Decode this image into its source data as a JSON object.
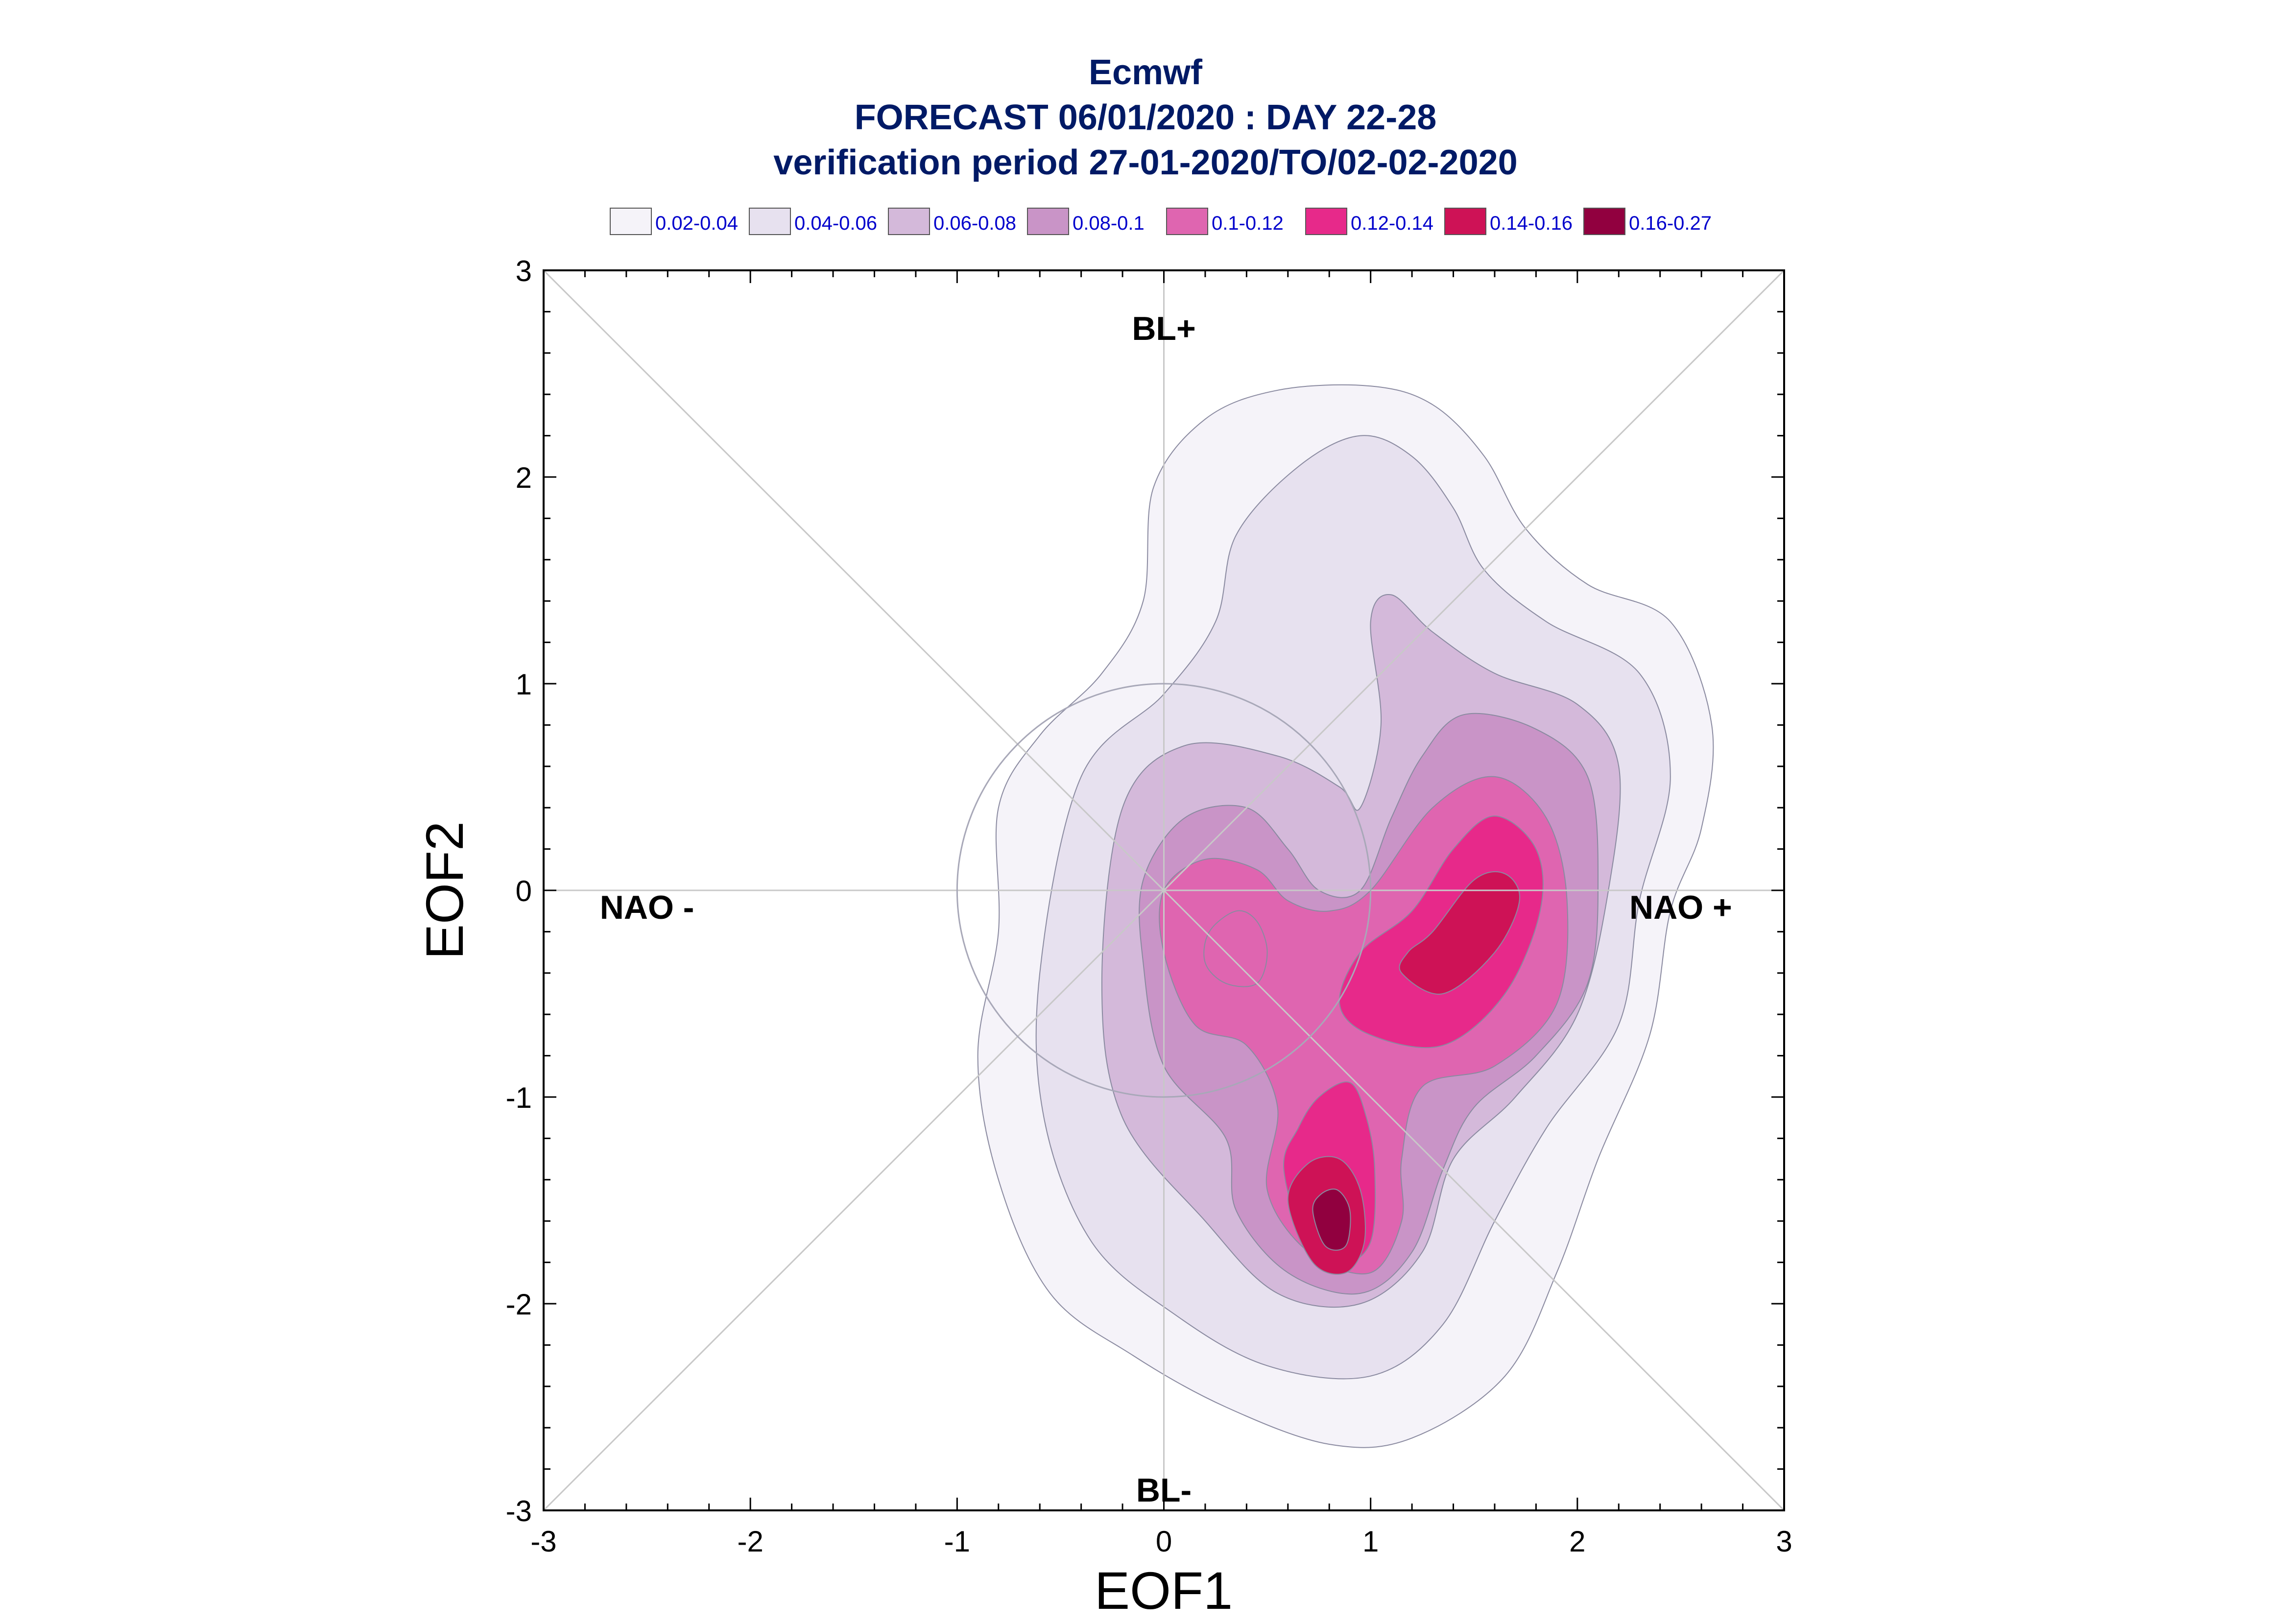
{
  "chart_data": {
    "type": "contour",
    "title": "Ecmwf",
    "subtitle": "FORECAST 06/01/2020 : DAY 22-28",
    "subtitle2": "verification period 27-01-2020/TO/02-02-2020",
    "xlabel": "EOF1",
    "ylabel": "EOF2",
    "xlim": [
      -3,
      3
    ],
    "ylim": [
      -3,
      3
    ],
    "x_ticks": [
      "-3",
      "-2",
      "-1",
      "0",
      "1",
      "2",
      "3"
    ],
    "y_ticks": [
      "-3",
      "-2",
      "-1",
      "0",
      "1",
      "2",
      "3"
    ],
    "grid": false,
    "legend_position": "top",
    "regime_labels": [
      {
        "text": "BL+",
        "x": 0.0,
        "y": 2.72
      },
      {
        "text": "BL-",
        "x": 0.0,
        "y": -2.9
      },
      {
        "text": "NAO -",
        "x": -2.5,
        "y": -0.08
      },
      {
        "text": "NAO +",
        "x": 2.5,
        "y": -0.08
      }
    ],
    "reference_lines": {
      "diagonals": true,
      "axes_through_origin": true,
      "unit_circle_radius": 1
    },
    "levels": [
      {
        "label": "0.02-0.04",
        "color": "#f5f3f9"
      },
      {
        "label": "0.04-0.06",
        "color": "#e7e1ef"
      },
      {
        "label": "0.06-0.08",
        "color": "#d4b9da"
      },
      {
        "label": "0.08-0.1",
        "color": "#c994c7"
      },
      {
        "label": "0.1-0.12",
        "color": "#df65b0"
      },
      {
        "label": "0.12-0.14",
        "color": "#e7298a"
      },
      {
        "label": "0.14-0.16",
        "color": "#ce1256"
      },
      {
        "label": "0.16-0.27",
        "color": "#91003f"
      }
    ],
    "contours": [
      {
        "level": 0,
        "points": [
          [
            -0.8,
            -0.2
          ],
          [
            -0.9,
            -0.8
          ],
          [
            -0.8,
            -1.4
          ],
          [
            -0.55,
            -1.95
          ],
          [
            -0.15,
            -2.25
          ],
          [
            0.3,
            -2.5
          ],
          [
            0.8,
            -2.68
          ],
          [
            1.2,
            -2.65
          ],
          [
            1.65,
            -2.35
          ],
          [
            1.9,
            -1.85
          ],
          [
            2.1,
            -1.3
          ],
          [
            2.35,
            -0.7
          ],
          [
            2.45,
            -0.1
          ],
          [
            2.6,
            0.3
          ],
          [
            2.65,
            0.8
          ],
          [
            2.45,
            1.3
          ],
          [
            2.05,
            1.48
          ],
          [
            1.75,
            1.75
          ],
          [
            1.55,
            2.1
          ],
          [
            1.3,
            2.35
          ],
          [
            1.0,
            2.44
          ],
          [
            0.55,
            2.42
          ],
          [
            0.2,
            2.28
          ],
          [
            -0.05,
            1.95
          ],
          [
            -0.1,
            1.4
          ],
          [
            -0.3,
            1.05
          ],
          [
            -0.6,
            0.75
          ],
          [
            -0.8,
            0.4
          ]
        ]
      },
      {
        "level": 1,
        "points": [
          [
            -0.6,
            -0.4
          ],
          [
            -0.58,
            -1.1
          ],
          [
            -0.35,
            -1.7
          ],
          [
            0.05,
            -2.05
          ],
          [
            0.5,
            -2.3
          ],
          [
            1.0,
            -2.35
          ],
          [
            1.35,
            -2.1
          ],
          [
            1.6,
            -1.6
          ],
          [
            1.85,
            -1.15
          ],
          [
            2.2,
            -0.65
          ],
          [
            2.3,
            -0.05
          ],
          [
            2.45,
            0.55
          ],
          [
            2.3,
            1.05
          ],
          [
            1.85,
            1.3
          ],
          [
            1.55,
            1.55
          ],
          [
            1.4,
            1.85
          ],
          [
            1.2,
            2.1
          ],
          [
            0.95,
            2.2
          ],
          [
            0.65,
            2.05
          ],
          [
            0.35,
            1.72
          ],
          [
            0.25,
            1.3
          ],
          [
            0.0,
            0.95
          ],
          [
            -0.4,
            0.55
          ]
        ]
      },
      {
        "level": 2,
        "points": [
          [
            -0.3,
            -0.45
          ],
          [
            -0.2,
            -1.1
          ],
          [
            0.2,
            -1.6
          ],
          [
            0.55,
            -1.95
          ],
          [
            0.95,
            -2.0
          ],
          [
            1.25,
            -1.75
          ],
          [
            1.4,
            -1.3
          ],
          [
            1.7,
            -1.0
          ],
          [
            2.0,
            -0.6
          ],
          [
            2.15,
            0.0
          ],
          [
            2.2,
            0.6
          ],
          [
            2.0,
            0.9
          ],
          [
            1.6,
            1.05
          ],
          [
            1.3,
            1.25
          ],
          [
            1.1,
            1.43
          ],
          [
            1.0,
            1.3
          ],
          [
            1.05,
            0.8
          ],
          [
            0.95,
            0.4
          ],
          [
            0.85,
            0.5
          ],
          [
            0.55,
            0.65
          ],
          [
            0.1,
            0.7
          ],
          [
            -0.2,
            0.4
          ]
        ]
      },
      {
        "level": 3,
        "points": [
          [
            -0.1,
            -0.35
          ],
          [
            0.0,
            -0.85
          ],
          [
            0.3,
            -1.2
          ],
          [
            0.35,
            -1.55
          ],
          [
            0.6,
            -1.85
          ],
          [
            0.95,
            -1.95
          ],
          [
            1.2,
            -1.75
          ],
          [
            1.35,
            -1.35
          ],
          [
            1.5,
            -1.05
          ],
          [
            1.8,
            -0.8
          ],
          [
            2.05,
            -0.45
          ],
          [
            2.1,
            0.05
          ],
          [
            2.05,
            0.55
          ],
          [
            1.8,
            0.78
          ],
          [
            1.45,
            0.85
          ],
          [
            1.25,
            0.65
          ],
          [
            1.1,
            0.35
          ],
          [
            0.95,
            0.0
          ],
          [
            0.75,
            0.0
          ],
          [
            0.6,
            0.2
          ],
          [
            0.4,
            0.4
          ],
          [
            0.1,
            0.35
          ],
          [
            -0.1,
            0.05
          ]
        ]
      },
      {
        "level": 4,
        "points": [
          [
            0.0,
            -0.3
          ],
          [
            0.15,
            -0.65
          ],
          [
            0.4,
            -0.75
          ],
          [
            0.55,
            -1.05
          ],
          [
            0.5,
            -1.45
          ],
          [
            0.7,
            -1.75
          ],
          [
            1.0,
            -1.85
          ],
          [
            1.15,
            -1.6
          ],
          [
            1.15,
            -1.3
          ],
          [
            1.25,
            -0.95
          ],
          [
            1.6,
            -0.85
          ],
          [
            1.9,
            -0.55
          ],
          [
            1.95,
            -0.05
          ],
          [
            1.85,
            0.35
          ],
          [
            1.6,
            0.55
          ],
          [
            1.3,
            0.4
          ],
          [
            1.0,
            0.0
          ],
          [
            0.8,
            -0.1
          ],
          [
            0.6,
            -0.05
          ],
          [
            0.45,
            0.1
          ],
          [
            0.2,
            0.15
          ],
          [
            0.0,
            0.0
          ]
        ]
      },
      {
        "level": 5,
        "points": [
          [
            0.58,
            -1.35
          ],
          [
            0.7,
            -1.75
          ],
          [
            0.85,
            -1.82
          ],
          [
            1.0,
            -1.7
          ],
          [
            1.02,
            -1.35
          ],
          [
            0.98,
            -1.1
          ],
          [
            0.9,
            -0.93
          ],
          [
            0.75,
            -1.0
          ],
          [
            0.65,
            -1.15
          ]
        ]
      },
      {
        "level": 5,
        "points": [
          [
            0.85,
            -0.55
          ],
          [
            1.0,
            -0.7
          ],
          [
            1.35,
            -0.75
          ],
          [
            1.65,
            -0.5
          ],
          [
            1.82,
            -0.1
          ],
          [
            1.8,
            0.2
          ],
          [
            1.6,
            0.36
          ],
          [
            1.4,
            0.2
          ],
          [
            1.2,
            -0.1
          ],
          [
            0.95,
            -0.3
          ]
        ]
      },
      {
        "level": 4,
        "points": [
          [
            0.2,
            -0.35
          ],
          [
            0.3,
            -0.45
          ],
          [
            0.45,
            -0.45
          ],
          [
            0.5,
            -0.3
          ],
          [
            0.45,
            -0.15
          ],
          [
            0.35,
            -0.1
          ],
          [
            0.22,
            -0.2
          ]
        ]
      },
      {
        "level": 6,
        "points": [
          [
            1.15,
            -0.4
          ],
          [
            1.35,
            -0.5
          ],
          [
            1.6,
            -0.3
          ],
          [
            1.72,
            -0.05
          ],
          [
            1.65,
            0.08
          ],
          [
            1.5,
            0.05
          ],
          [
            1.3,
            -0.2
          ],
          [
            1.18,
            -0.3
          ]
        ]
      },
      {
        "level": 6,
        "points": [
          [
            0.6,
            -1.5
          ],
          [
            0.72,
            -1.8
          ],
          [
            0.88,
            -1.85
          ],
          [
            0.97,
            -1.7
          ],
          [
            0.95,
            -1.45
          ],
          [
            0.85,
            -1.3
          ],
          [
            0.7,
            -1.32
          ]
        ]
      },
      {
        "level": 7,
        "points": [
          [
            0.72,
            -1.55
          ],
          [
            0.78,
            -1.72
          ],
          [
            0.88,
            -1.72
          ],
          [
            0.9,
            -1.55
          ],
          [
            0.84,
            -1.45
          ],
          [
            0.76,
            -1.47
          ]
        ]
      }
    ]
  }
}
